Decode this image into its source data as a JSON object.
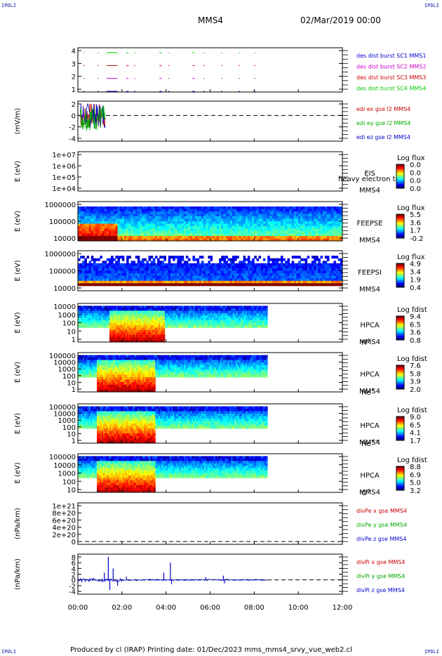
{
  "corner_label": "IPDLI",
  "header": {
    "spacecraft": "MMS4",
    "date": "02/Mar/2019 00:00"
  },
  "footer": {
    "text": "Produced by cl (IRAP)   Printing date: 01/Dec/2023   mms_mms4_srvy_vue_web2.cl"
  },
  "time_axis": {
    "ticks": [
      "00:00",
      "02:00",
      "04:00",
      "06:00",
      "08:00",
      "10:00",
      "12:00"
    ],
    "range_hours": [
      0,
      12
    ]
  },
  "chart_data": [
    {
      "type": "line",
      "id": "burst",
      "ylabel": "",
      "yticks": [
        "4",
        "3",
        "2",
        "1"
      ],
      "legend": [
        {
          "name": "des dist burst SC1 MMS1",
          "color": "#0000cc"
        },
        {
          "name": "des dist burst SC2 MMS2",
          "color": "#cc00cc"
        },
        {
          "name": "des dist burst SC3 MMS3",
          "color": "#cc0000"
        },
        {
          "name": "des dist burst SC4 MMS4",
          "color": "#00cc00"
        }
      ],
      "series": [
        {
          "level": 4,
          "color": "#00cc00",
          "segments": [
            [
              0.25,
              0.3
            ],
            [
              0.9,
              0.95
            ],
            [
              1.3,
              1.8
            ],
            [
              2.2,
              2.3
            ],
            [
              2.55,
              2.6
            ],
            [
              3.7,
              3.8
            ],
            [
              4.1,
              4.15
            ],
            [
              5.2,
              5.3
            ],
            [
              5.7,
              5.75
            ],
            [
              6.5,
              6.55
            ],
            [
              7.3,
              7.35
            ],
            [
              8.0,
              8.05
            ]
          ]
        },
        {
          "level": 3,
          "color": "#cc0000",
          "segments": [
            [
              0.25,
              0.3
            ],
            [
              0.9,
              0.95
            ],
            [
              1.3,
              1.8
            ],
            [
              2.2,
              2.3
            ],
            [
              2.55,
              2.6
            ],
            [
              3.7,
              3.8
            ],
            [
              4.1,
              4.15
            ],
            [
              5.2,
              5.3
            ],
            [
              5.7,
              5.75
            ],
            [
              6.5,
              6.55
            ],
            [
              7.3,
              7.35
            ],
            [
              8.0,
              8.05
            ]
          ]
        },
        {
          "level": 2,
          "color": "#cc00cc",
          "segments": [
            [
              0.25,
              0.3
            ],
            [
              0.9,
              0.95
            ],
            [
              1.3,
              1.8
            ],
            [
              2.2,
              2.3
            ],
            [
              2.55,
              2.6
            ],
            [
              3.7,
              3.8
            ],
            [
              4.1,
              4.15
            ],
            [
              5.2,
              5.3
            ],
            [
              5.7,
              5.75
            ],
            [
              6.5,
              6.55
            ],
            [
              7.3,
              7.35
            ],
            [
              8.0,
              8.05
            ]
          ]
        },
        {
          "level": 1,
          "color": "#0000cc",
          "segments": [
            [
              0.25,
              0.3
            ],
            [
              0.9,
              0.95
            ],
            [
              1.3,
              1.8
            ],
            [
              2.2,
              2.3
            ],
            [
              2.55,
              2.6
            ],
            [
              3.7,
              3.8
            ],
            [
              4.1,
              4.15
            ],
            [
              5.2,
              5.3
            ],
            [
              5.7,
              5.75
            ],
            [
              6.5,
              6.55
            ],
            [
              7.3,
              7.35
            ],
            [
              8.0,
              8.05
            ]
          ]
        }
      ]
    },
    {
      "type": "line",
      "id": "edi",
      "ylabel": "(mV/m)",
      "yticks": [
        "2",
        "0",
        "-2",
        "-4"
      ],
      "ylim": [
        -4,
        2
      ],
      "legend": [
        {
          "name": "edi ex gse l2 MMS4",
          "color": "#cc0000"
        },
        {
          "name": "edi ey gse l2 MMS4",
          "color": "#00aa00"
        },
        {
          "name": "edi ez gse l2 MMS4",
          "color": "#0000cc"
        }
      ]
    },
    {
      "type": "heatmap",
      "id": "eis",
      "ylabel": "E (eV)",
      "yticks": [
        "1e+07",
        "1e+06",
        "1e+05",
        "1e+04"
      ],
      "side_labels": [
        "EIS",
        "MMS4"
      ],
      "overlay_text": "heavy electron to",
      "colorbar": {
        "title": "Log flux",
        "ticks": [
          "0.0",
          "0.0",
          "0.0",
          "0.0"
        ]
      },
      "data_extent_hours": [
        0,
        0
      ]
    },
    {
      "type": "heatmap",
      "id": "feepse",
      "ylabel": "E (eV)",
      "yticks": [
        "1000000",
        "100000",
        "10000"
      ],
      "side_labels": [
        "FEEPSE",
        "MMS4"
      ],
      "colorbar": {
        "title": "Log flux",
        "ticks": [
          "5.5",
          "3.6",
          "1.7",
          "-0.2"
        ]
      },
      "data_extent_hours": [
        0,
        12
      ]
    },
    {
      "type": "heatmap",
      "id": "feepsi",
      "ylabel": "E (eV)",
      "yticks": [
        "1000000",
        "100000",
        "10000"
      ],
      "side_labels": [
        "FEEPSI",
        "MMS4"
      ],
      "colorbar": {
        "title": "Log flux",
        "ticks": [
          "4.9",
          "3.4",
          "1.9",
          "0.4"
        ]
      },
      "data_extent_hours": [
        0,
        12
      ]
    },
    {
      "type": "heatmap",
      "id": "hpca-h",
      "ylabel": "E (eV)",
      "yticks": [
        "10000",
        "1000",
        "100",
        "10",
        "1"
      ],
      "side_labels": [
        "HPCA",
        "MMS4"
      ],
      "species": "H",
      "species_sup": "+",
      "colorbar": {
        "title": "Log fdist",
        "ticks": [
          "9.4",
          "6.5",
          "3.6",
          "0.8"
        ]
      },
      "data_extent_hours": [
        0,
        8.6
      ]
    },
    {
      "type": "heatmap",
      "id": "hpca-he1",
      "ylabel": "E (eV)",
      "yticks": [
        "100000",
        "10000",
        "1000",
        "100",
        "10",
        "1"
      ],
      "side_labels": [
        "HPCA",
        "MMS4"
      ],
      "species": "He",
      "species_sup": "+",
      "colorbar": {
        "title": "Log fdist",
        "ticks": [
          "7.6",
          "5.8",
          "3.9",
          "2.0"
        ]
      },
      "data_extent_hours": [
        0,
        8.6
      ]
    },
    {
      "type": "heatmap",
      "id": "hpca-he2",
      "ylabel": "E (eV)",
      "yticks": [
        "100000",
        "10000",
        "1000",
        "100",
        "10",
        "1"
      ],
      "side_labels": [
        "HPCA",
        "MMS4"
      ],
      "species": "He",
      "species_sup": "++",
      "colorbar": {
        "title": "Log fdist",
        "ticks": [
          "9.0",
          "6.5",
          "4.1",
          "1.7"
        ]
      },
      "data_extent_hours": [
        0,
        8.6
      ]
    },
    {
      "type": "heatmap",
      "id": "hpca-o",
      "ylabel": "E (eV)",
      "yticks": [
        "100000",
        "10000",
        "1000",
        "100",
        "10"
      ],
      "side_labels": [
        "HPCA",
        "MMS4"
      ],
      "species": "O",
      "species_sup": "+",
      "colorbar": {
        "title": "Log fdist",
        "ticks": [
          "8.8",
          "6.9",
          "5.0",
          "3.2"
        ]
      },
      "data_extent_hours": [
        0,
        8.6
      ]
    },
    {
      "type": "line",
      "id": "divpe",
      "ylabel": "(nPa/km)",
      "yticks": [
        "1e+21",
        "8e+20",
        "6e+20",
        "4e+20",
        "2e+20",
        "0"
      ],
      "legend": [
        {
          "name": "divPe x gse MMS4",
          "color": "#cc0000"
        },
        {
          "name": "divPe y gse MMS4",
          "color": "#00aa00"
        },
        {
          "name": "divPe z gse MMS4",
          "color": "#0000cc"
        }
      ]
    },
    {
      "type": "line",
      "id": "divpi",
      "ylabel": "(nPa/km)",
      "yticks": [
        "8",
        "6",
        "4",
        "2",
        "0",
        "-2",
        "-4"
      ],
      "ylim": [
        -4,
        8
      ],
      "legend": [
        {
          "name": "divPi x gse MMS4",
          "color": "#cc0000"
        },
        {
          "name": "divPi y gse MMS4",
          "color": "#00aa00"
        },
        {
          "name": "divPi z gse MMS4",
          "color": "#0000cc"
        }
      ],
      "spikes": [
        {
          "t": 1.38,
          "y": 8.0
        },
        {
          "t": 1.45,
          "y": -3.5
        },
        {
          "t": 1.6,
          "y": 4.0
        },
        {
          "t": 1.2,
          "y": 2.5
        },
        {
          "t": 1.8,
          "y": -2.0
        },
        {
          "t": 2.2,
          "y": 1.2
        },
        {
          "t": 3.9,
          "y": 2.5
        },
        {
          "t": 4.2,
          "y": 6.0
        },
        {
          "t": 4.25,
          "y": -1.5
        },
        {
          "t": 5.8,
          "y": 1.0
        },
        {
          "t": 6.6,
          "y": 1.5
        },
        {
          "t": 6.65,
          "y": -1.2
        }
      ]
    }
  ]
}
